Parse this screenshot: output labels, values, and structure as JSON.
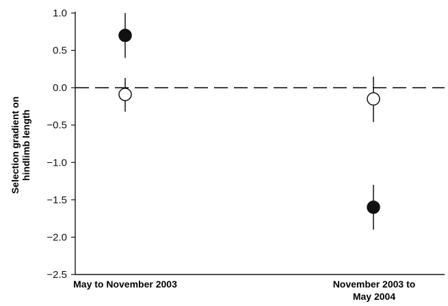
{
  "chart_data": {
    "type": "scatter",
    "ylabel_lines": [
      "Selection gradient on",
      "hindlimb length"
    ],
    "ylim": [
      -2.5,
      1.0
    ],
    "yticks": [
      1.0,
      0.5,
      0.0,
      -0.5,
      -1.0,
      -1.5,
      -2.0,
      -2.5
    ],
    "ytick_labels": [
      "1.0",
      "0.5",
      "0.0",
      "−0.5",
      "−1.0",
      "−1.5",
      "−2.0",
      "−2.5"
    ],
    "categories": [
      {
        "lines": [
          "May to November 2003"
        ]
      },
      {
        "lines": [
          "November 2003 to",
          "May 2004"
        ]
      }
    ],
    "reference_line": {
      "y": 0,
      "style": "dashed"
    },
    "series": [
      {
        "marker": "filled-circle",
        "color": "#111111",
        "points": [
          {
            "category": 0,
            "y": 0.7,
            "lower": 0.4,
            "upper": 1.0
          },
          {
            "category": 1,
            "y": -1.6,
            "lower": -1.9,
            "upper": -1.3
          }
        ]
      },
      {
        "marker": "open-circle",
        "color": "#111111",
        "points": [
          {
            "category": 0,
            "y": -0.09,
            "lower": -0.32,
            "upper": 0.13
          },
          {
            "category": 1,
            "y": -0.15,
            "lower": -0.46,
            "upper": 0.15
          }
        ]
      }
    ]
  }
}
